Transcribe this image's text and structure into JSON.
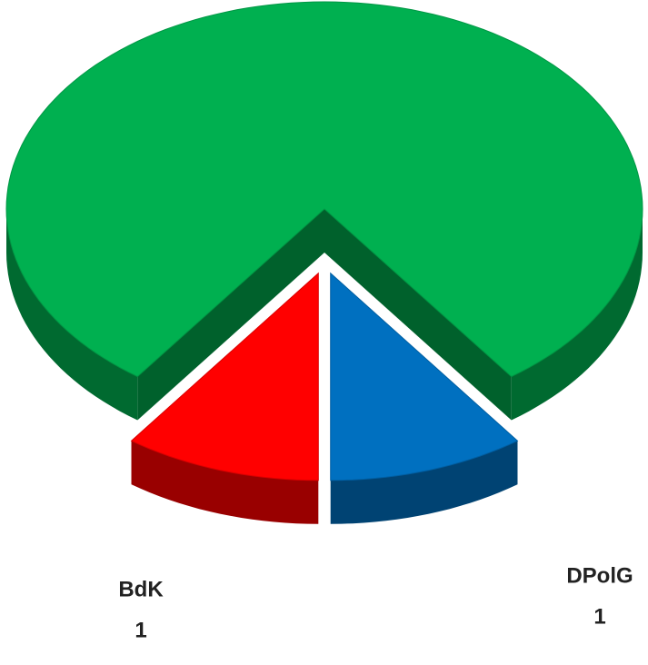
{
  "chart_data": {
    "type": "pie",
    "categories": [
      null,
      "BdK",
      "DPolG"
    ],
    "values": [
      8,
      1,
      1
    ],
    "colors": [
      "#00b050",
      "#ff0000",
      "#0070c0"
    ]
  }
}
